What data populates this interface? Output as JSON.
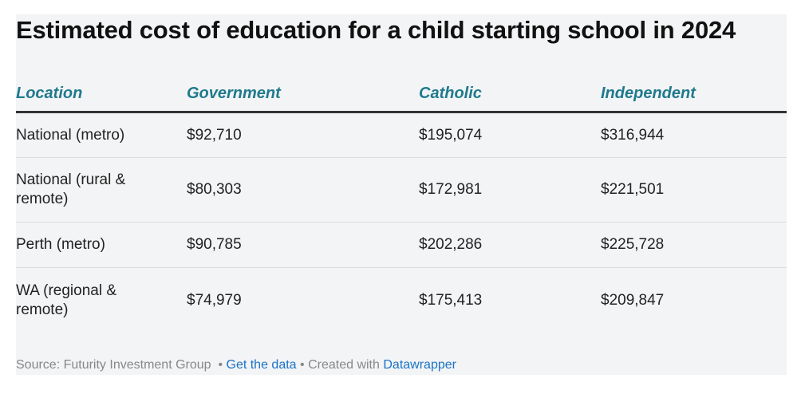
{
  "chart_data": {
    "type": "table",
    "title": "Estimated cost of education for a child starting school in 2024",
    "columns": [
      "Location",
      "Government",
      "Catholic",
      "Independent"
    ],
    "rows": [
      [
        "National (metro)",
        "$92,710",
        "$195,074",
        "$316,944"
      ],
      [
        "National (rural & remote)",
        "$80,303",
        "$172,981",
        "$221,501"
      ],
      [
        "Perth (metro)",
        "$90,785",
        "$202,286",
        "$225,728"
      ],
      [
        "WA (regional & remote)",
        "$74,979",
        "$175,413",
        "$209,847"
      ]
    ]
  },
  "footer": {
    "source": "Source: Futurity Investment Group",
    "sep1": "•",
    "get_data": "Get the data",
    "sep2": "•",
    "created": "Created with",
    "datawrapper": "Datawrapper"
  },
  "colors": {
    "header_text": "#1f7a8c",
    "link": "#1a73c6",
    "background": "#f3f4f6"
  }
}
